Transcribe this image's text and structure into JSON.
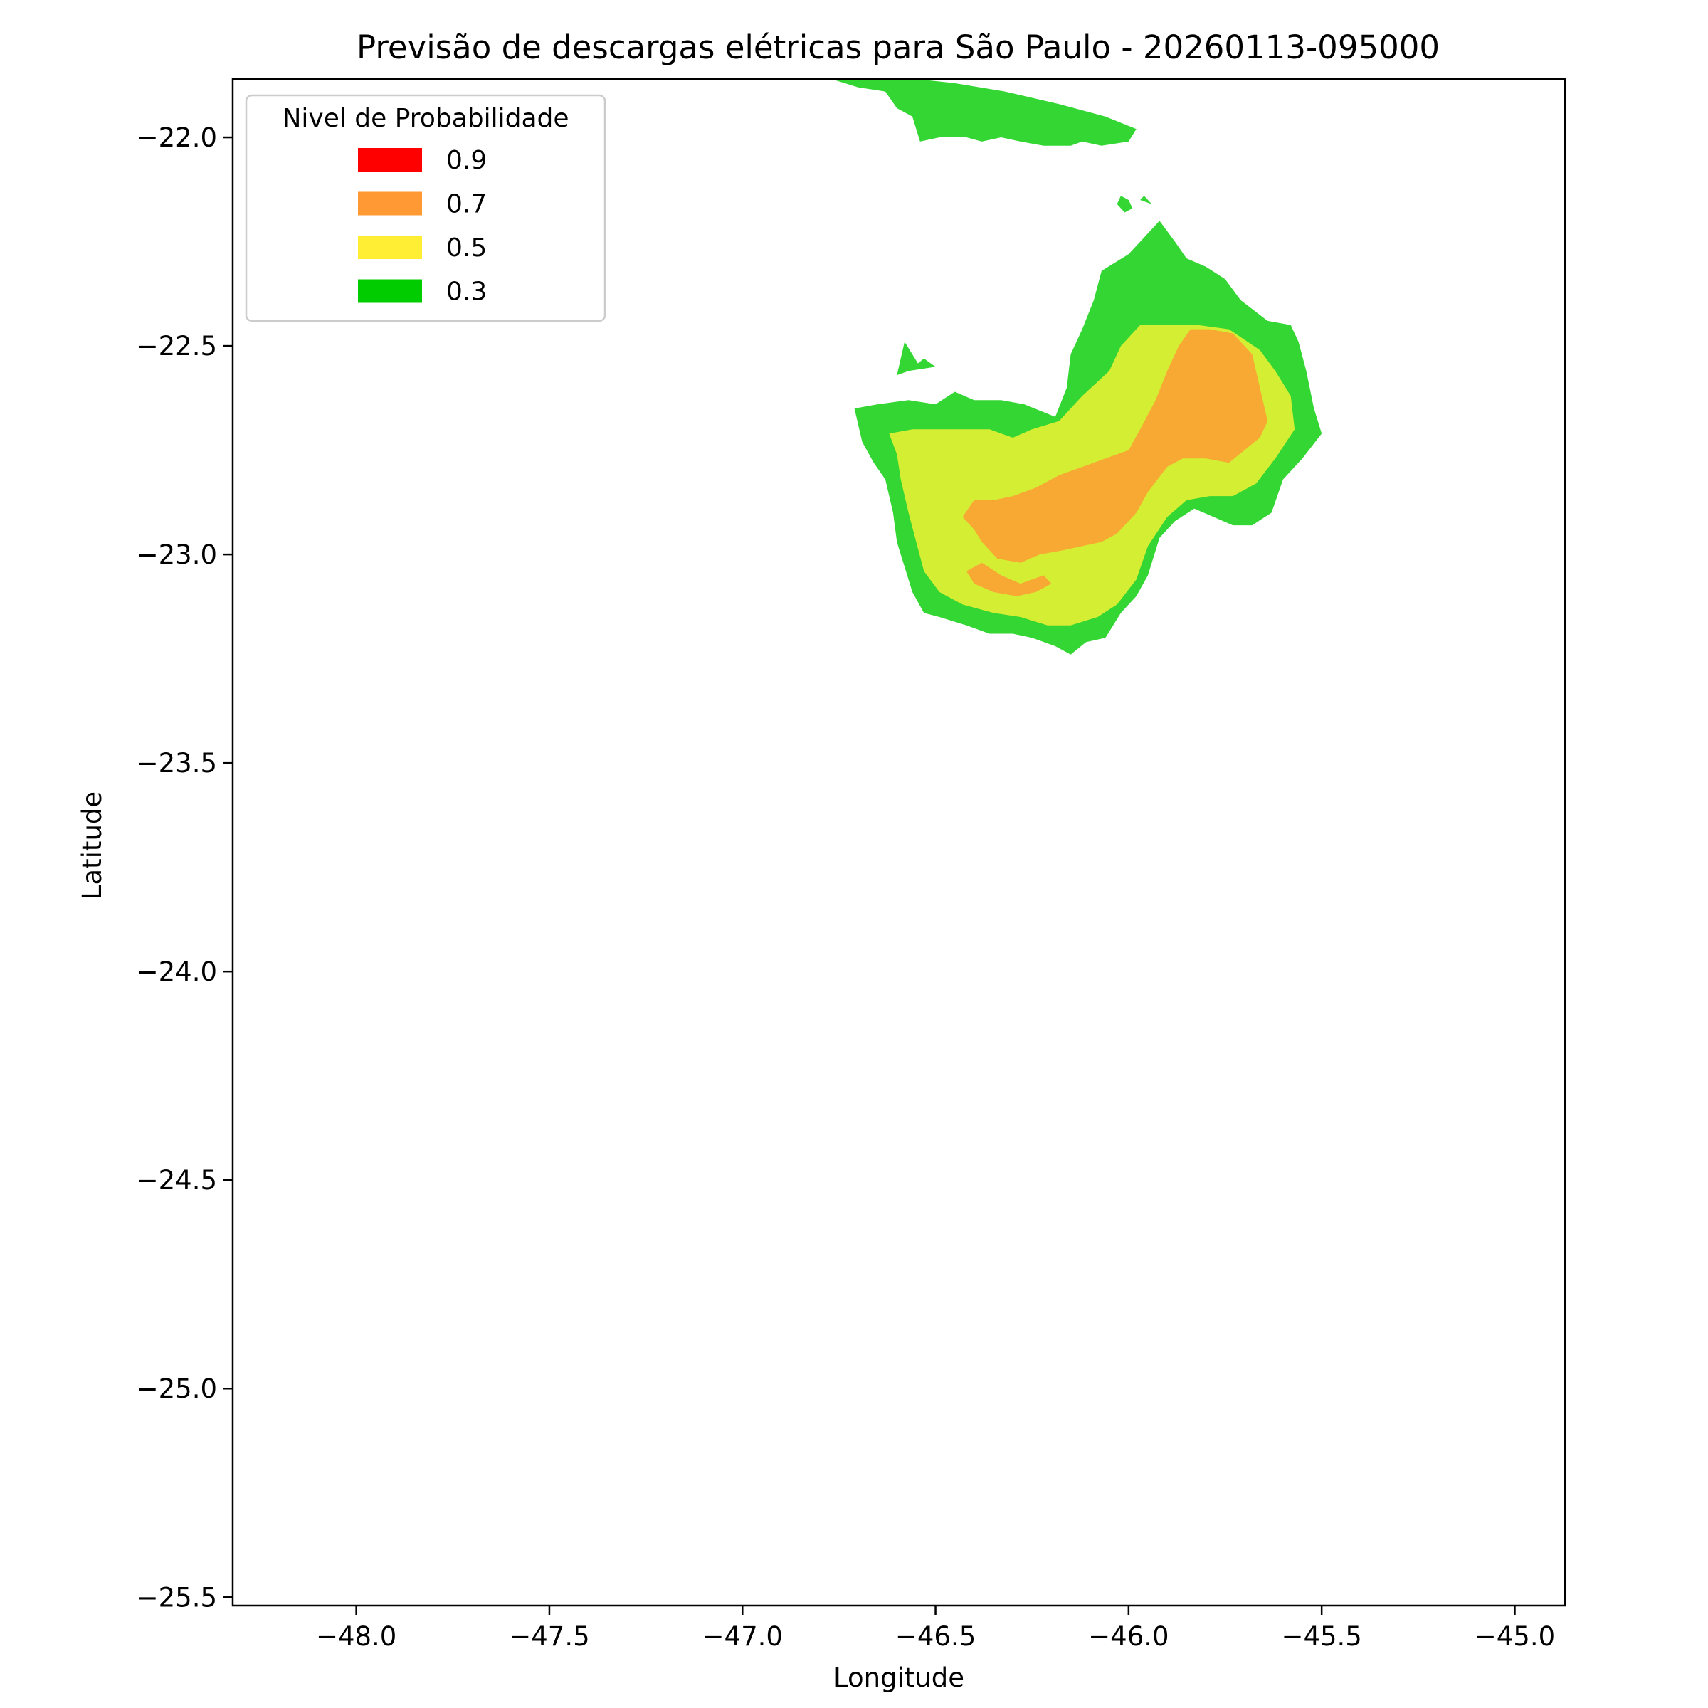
{
  "chart_data": {
    "type": "contour",
    "title": "Previsão de descargas elétricas para São Paulo - 20260113-095000",
    "xlabel": "Longitude",
    "ylabel": "Latitude",
    "xlim": [
      -48.32,
      -44.87
    ],
    "ylim": [
      -25.52,
      -21.86
    ],
    "xticks": [
      -48.0,
      -47.5,
      -47.0,
      -46.5,
      -46.0,
      -45.5,
      -45.0
    ],
    "xtick_labels": [
      "−48.0",
      "−47.5",
      "−47.0",
      "−46.5",
      "−46.0",
      "−45.5",
      "−45.0"
    ],
    "yticks": [
      -22.0,
      -22.5,
      -23.0,
      -23.5,
      -24.0,
      -24.5,
      -25.0,
      -25.5
    ],
    "ytick_labels": [
      "−22.0",
      "−22.5",
      "−23.0",
      "−23.5",
      "−24.0",
      "−24.5",
      "−25.0",
      "−25.5"
    ],
    "grid": false,
    "legend": {
      "title": "Nivel de Probabilidade",
      "position": "top-left",
      "entries": [
        {
          "label": "0.9",
          "color": "#ff0000"
        },
        {
          "label": "0.7",
          "color": "#ff9933"
        },
        {
          "label": "0.5",
          "color": "#ffee33"
        },
        {
          "label": "0.3",
          "color": "#00cc00"
        }
      ]
    },
    "regions": [
      {
        "level": "0.3",
        "color": "#33d633",
        "points": [
          [
            -46.77,
            -21.86
          ],
          [
            -46.55,
            -21.86
          ],
          [
            -46.45,
            -21.87
          ],
          [
            -46.32,
            -21.89
          ],
          [
            -46.18,
            -21.92
          ],
          [
            -46.06,
            -21.95
          ],
          [
            -45.98,
            -21.98
          ],
          [
            -46.0,
            -22.01
          ],
          [
            -46.07,
            -22.02
          ],
          [
            -46.12,
            -22.01
          ],
          [
            -46.15,
            -22.02
          ],
          [
            -46.22,
            -22.02
          ],
          [
            -46.28,
            -22.01
          ],
          [
            -46.33,
            -22.0
          ],
          [
            -46.38,
            -22.01
          ],
          [
            -46.42,
            -22.0
          ],
          [
            -46.49,
            -22.0
          ],
          [
            -46.54,
            -22.01
          ],
          [
            -46.56,
            -21.95
          ],
          [
            -46.6,
            -21.93
          ],
          [
            -46.63,
            -21.89
          ],
          [
            -46.7,
            -21.88
          ]
        ]
      },
      {
        "level": "0.3",
        "color": "#33d633",
        "points": [
          [
            -46.0,
            -22.15
          ],
          [
            -45.99,
            -22.17
          ],
          [
            -46.01,
            -22.18
          ],
          [
            -46.03,
            -22.16
          ],
          [
            -46.02,
            -22.14
          ]
        ]
      },
      {
        "level": "0.3",
        "color": "#33d633",
        "points": [
          [
            -45.97,
            -22.15
          ],
          [
            -45.94,
            -22.16
          ],
          [
            -45.96,
            -22.14
          ]
        ]
      },
      {
        "level": "0.3",
        "color": "#33d633",
        "points": [
          [
            -46.57,
            -22.56
          ],
          [
            -46.5,
            -22.55
          ],
          [
            -46.53,
            -22.53
          ]
        ]
      },
      {
        "level": "0.3",
        "color": "#33d633",
        "points": [
          [
            -46.6,
            -22.57
          ],
          [
            -46.54,
            -22.55
          ],
          [
            -46.58,
            -22.49
          ]
        ]
      },
      {
        "level": "0.3",
        "color": "#33d633",
        "points": [
          [
            -45.92,
            -22.2
          ],
          [
            -45.88,
            -22.25
          ],
          [
            -45.85,
            -22.29
          ],
          [
            -45.8,
            -22.31
          ],
          [
            -45.75,
            -22.34
          ],
          [
            -45.71,
            -22.39
          ],
          [
            -45.64,
            -22.44
          ],
          [
            -45.58,
            -22.45
          ],
          [
            -45.56,
            -22.49
          ],
          [
            -45.54,
            -22.56
          ],
          [
            -45.52,
            -22.65
          ],
          [
            -45.5,
            -22.71
          ],
          [
            -45.55,
            -22.77
          ],
          [
            -45.6,
            -22.82
          ],
          [
            -45.63,
            -22.9
          ],
          [
            -45.68,
            -22.93
          ],
          [
            -45.73,
            -22.93
          ],
          [
            -45.78,
            -22.91
          ],
          [
            -45.83,
            -22.89
          ],
          [
            -45.88,
            -22.92
          ],
          [
            -45.92,
            -22.96
          ],
          [
            -45.95,
            -23.05
          ],
          [
            -45.98,
            -23.1
          ],
          [
            -46.02,
            -23.14
          ],
          [
            -46.06,
            -23.2
          ],
          [
            -46.11,
            -23.21
          ],
          [
            -46.15,
            -23.24
          ],
          [
            -46.19,
            -23.22
          ],
          [
            -46.25,
            -23.2
          ],
          [
            -46.3,
            -23.19
          ],
          [
            -46.36,
            -23.19
          ],
          [
            -46.42,
            -23.17
          ],
          [
            -46.49,
            -23.15
          ],
          [
            -46.53,
            -23.14
          ],
          [
            -46.56,
            -23.09
          ],
          [
            -46.59,
            -23.0
          ],
          [
            -46.6,
            -22.97
          ],
          [
            -46.61,
            -22.9
          ],
          [
            -46.63,
            -22.82
          ],
          [
            -46.66,
            -22.78
          ],
          [
            -46.69,
            -22.73
          ],
          [
            -46.71,
            -22.65
          ],
          [
            -46.65,
            -22.64
          ],
          [
            -46.57,
            -22.63
          ],
          [
            -46.5,
            -22.64
          ],
          [
            -46.45,
            -22.61
          ],
          [
            -46.4,
            -22.63
          ],
          [
            -46.33,
            -22.63
          ],
          [
            -46.27,
            -22.64
          ],
          [
            -46.19,
            -22.67
          ],
          [
            -46.16,
            -22.6
          ],
          [
            -46.15,
            -22.52
          ],
          [
            -46.12,
            -22.46
          ],
          [
            -46.09,
            -22.39
          ],
          [
            -46.07,
            -22.32
          ],
          [
            -46.0,
            -22.28
          ],
          [
            -45.96,
            -22.24
          ]
        ]
      },
      {
        "level": "0.5",
        "color": "#d4ee33",
        "points": [
          [
            -45.82,
            -22.45
          ],
          [
            -45.74,
            -22.46
          ],
          [
            -45.66,
            -22.51
          ],
          [
            -45.62,
            -22.56
          ],
          [
            -45.58,
            -22.62
          ],
          [
            -45.57,
            -22.7
          ],
          [
            -45.62,
            -22.77
          ],
          [
            -45.67,
            -22.83
          ],
          [
            -45.73,
            -22.86
          ],
          [
            -45.79,
            -22.86
          ],
          [
            -45.85,
            -22.87
          ],
          [
            -45.9,
            -22.91
          ],
          [
            -45.95,
            -22.98
          ],
          [
            -45.98,
            -23.06
          ],
          [
            -46.03,
            -23.12
          ],
          [
            -46.08,
            -23.15
          ],
          [
            -46.15,
            -23.17
          ],
          [
            -46.21,
            -23.17
          ],
          [
            -46.28,
            -23.15
          ],
          [
            -46.35,
            -23.14
          ],
          [
            -46.43,
            -23.12
          ],
          [
            -46.49,
            -23.09
          ],
          [
            -46.53,
            -23.04
          ],
          [
            -46.55,
            -22.97
          ],
          [
            -46.57,
            -22.9
          ],
          [
            -46.59,
            -22.82
          ],
          [
            -46.6,
            -22.76
          ],
          [
            -46.62,
            -22.71
          ],
          [
            -46.56,
            -22.7
          ],
          [
            -46.5,
            -22.7
          ],
          [
            -46.43,
            -22.7
          ],
          [
            -46.36,
            -22.7
          ],
          [
            -46.3,
            -22.72
          ],
          [
            -46.25,
            -22.7
          ],
          [
            -46.18,
            -22.68
          ],
          [
            -46.12,
            -22.62
          ],
          [
            -46.05,
            -22.56
          ],
          [
            -46.02,
            -22.5
          ],
          [
            -45.97,
            -22.45
          ],
          [
            -45.9,
            -22.45
          ]
        ]
      },
      {
        "level": "0.7",
        "color": "#f7a933",
        "points": [
          [
            -45.79,
            -22.46
          ],
          [
            -45.73,
            -22.47
          ],
          [
            -45.68,
            -22.52
          ],
          [
            -45.66,
            -22.6
          ],
          [
            -45.64,
            -22.68
          ],
          [
            -45.66,
            -22.72
          ],
          [
            -45.7,
            -22.75
          ],
          [
            -45.74,
            -22.78
          ],
          [
            -45.8,
            -22.77
          ],
          [
            -45.86,
            -22.77
          ],
          [
            -45.9,
            -22.79
          ],
          [
            -45.95,
            -22.85
          ],
          [
            -45.98,
            -22.9
          ],
          [
            -46.03,
            -22.95
          ],
          [
            -46.07,
            -22.97
          ],
          [
            -46.12,
            -22.98
          ],
          [
            -46.17,
            -22.99
          ],
          [
            -46.23,
            -23.0
          ],
          [
            -46.28,
            -23.02
          ],
          [
            -46.34,
            -23.01
          ],
          [
            -46.38,
            -22.97
          ],
          [
            -46.4,
            -22.94
          ],
          [
            -46.43,
            -22.91
          ],
          [
            -46.4,
            -22.87
          ],
          [
            -46.35,
            -22.87
          ],
          [
            -46.3,
            -22.86
          ],
          [
            -46.24,
            -22.84
          ],
          [
            -46.18,
            -22.81
          ],
          [
            -46.12,
            -22.79
          ],
          [
            -46.06,
            -22.77
          ],
          [
            -46.0,
            -22.75
          ],
          [
            -45.97,
            -22.7
          ],
          [
            -45.93,
            -22.63
          ],
          [
            -45.9,
            -22.56
          ],
          [
            -45.87,
            -22.5
          ],
          [
            -45.84,
            -22.46
          ]
        ]
      },
      {
        "level": "0.7",
        "color": "#f7a933",
        "points": [
          [
            -46.33,
            -23.05
          ],
          [
            -46.28,
            -23.07
          ],
          [
            -46.25,
            -23.06
          ],
          [
            -46.22,
            -23.05
          ],
          [
            -46.2,
            -23.07
          ],
          [
            -46.24,
            -23.09
          ],
          [
            -46.29,
            -23.1
          ],
          [
            -46.35,
            -23.09
          ],
          [
            -46.4,
            -23.07
          ],
          [
            -46.42,
            -23.04
          ],
          [
            -46.38,
            -23.02
          ]
        ]
      }
    ]
  }
}
